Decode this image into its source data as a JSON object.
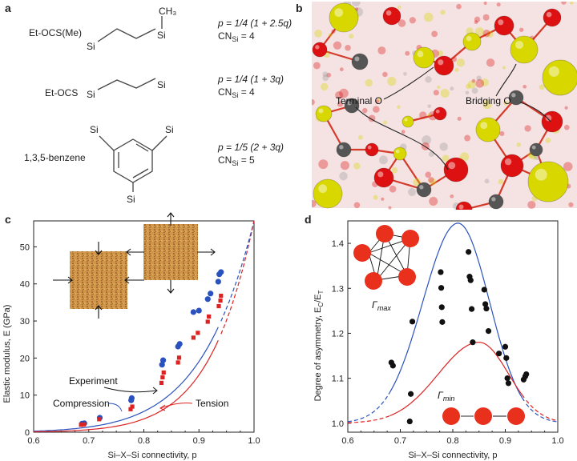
{
  "panel_a": {
    "label": "a",
    "molecules": [
      {
        "name": "Et-OCS(Me)",
        "formula": "p = 1/4 (1 + 2.5q)",
        "cn": "CN",
        "cn_sub": "Si",
        "cn_value": " = 4",
        "atoms": [
          "Si",
          "Si",
          "CH₃"
        ]
      },
      {
        "name": "Et-OCS",
        "formula": "p = 1/4 (1 + 3q)",
        "cn": "CN",
        "cn_sub": "Si",
        "cn_value": " = 4",
        "atoms": [
          "Si",
          "Si"
        ]
      },
      {
        "name": "1,3,5-benzene",
        "formula": "p = 1/5 (2 + 3q)",
        "cn": "CN",
        "cn_sub": "Si",
        "cn_value": " = 5",
        "atoms": [
          "Si",
          "Si",
          "Si"
        ]
      }
    ]
  },
  "panel_b": {
    "label": "b",
    "annotations": [
      "Terminal O",
      "Bridging O"
    ],
    "colors": {
      "si": "#d8d800",
      "o": "#dd1111",
      "c": "#555555",
      "bg": "#f4dcdc"
    }
  },
  "panel_c": {
    "label": "c",
    "annotations": [
      "Experiment",
      "Compression",
      "Tension"
    ],
    "chart_data": {
      "type": "scatter",
      "xlabel": "Si–X–Si connectivity, p",
      "ylabel": "Elastic modulus, E (GPa)",
      "xlim": [
        0.6,
        1.0
      ],
      "ylim": [
        0,
        57
      ],
      "xticks": [
        "0.6",
        "0.7",
        "0.8",
        "0.9",
        "1.0"
      ],
      "yticks": [
        "0",
        "10",
        "20",
        "30",
        "40",
        "50"
      ],
      "series": [
        {
          "name": "Compression",
          "color": "#2a52be",
          "marker": "circle",
          "points": [
            [
              0.688,
              2.3
            ],
            [
              0.692,
              2.4
            ],
            [
              0.72,
              3.9
            ],
            [
              0.777,
              8.6
            ],
            [
              0.778,
              9.2
            ],
            [
              0.833,
              18.2
            ],
            [
              0.835,
              19.4
            ],
            [
              0.862,
              23.1
            ],
            [
              0.865,
              23.8
            ],
            [
              0.89,
              32.4
            ],
            [
              0.9,
              32.8
            ],
            [
              0.916,
              35.9
            ],
            [
              0.921,
              37.4
            ],
            [
              0.935,
              40.6
            ],
            [
              0.937,
              42.6
            ],
            [
              0.94,
              43.2
            ]
          ]
        },
        {
          "name": "Tension",
          "color": "#dd2222",
          "marker": "square",
          "points": [
            [
              0.686,
              2.0
            ],
            [
              0.691,
              2.1
            ],
            [
              0.719,
              3.5
            ],
            [
              0.776,
              6.2
            ],
            [
              0.779,
              6.9
            ],
            [
              0.832,
              13.3
            ],
            [
              0.834,
              14.8
            ],
            [
              0.836,
              16.1
            ],
            [
              0.862,
              18.8
            ],
            [
              0.864,
              20.1
            ],
            [
              0.89,
              25.5
            ],
            [
              0.898,
              26.8
            ],
            [
              0.916,
              29.8
            ],
            [
              0.918,
              31.2
            ],
            [
              0.936,
              34.0
            ],
            [
              0.939,
              35.5
            ],
            [
              0.94,
              36.8
            ]
          ]
        }
      ],
      "curves": [
        {
          "name": "compression-fit",
          "color": "#2a52be",
          "dashed_after": 0.94
        },
        {
          "name": "tension-fit",
          "color": "#dd2222",
          "dashed_after": 0.94
        }
      ]
    }
  },
  "panel_d": {
    "label": "d",
    "annotations": [
      "Γ",
      "max",
      "Γ",
      "min"
    ],
    "chart_data": {
      "type": "scatter",
      "xlabel": "Si–X–Si connectivity, p",
      "ylabel": "Degree of asymmetry, E",
      "ylabel_sub1": "C",
      "ylabel_mid": "/E",
      "ylabel_sub2": "T",
      "xlim": [
        0.6,
        1.0
      ],
      "ylim": [
        0.98,
        1.45
      ],
      "xticks": [
        "0.6",
        "0.7",
        "0.8",
        "0.9",
        "1.0"
      ],
      "yticks": [
        "1.0",
        "1.1",
        "1.2",
        "1.3",
        "1.4"
      ],
      "series": [
        {
          "name": "data",
          "color": "#111111",
          "marker": "circle",
          "points": [
            [
              0.683,
              1.135
            ],
            [
              0.686,
              1.128
            ],
            [
              0.718,
              1.004
            ],
            [
              0.72,
              1.065
            ],
            [
              0.723,
              1.226
            ],
            [
              0.777,
              1.336
            ],
            [
              0.778,
              1.301
            ],
            [
              0.779,
              1.258
            ],
            [
              0.78,
              1.225
            ],
            [
              0.83,
              1.381
            ],
            [
              0.832,
              1.326
            ],
            [
              0.834,
              1.318
            ],
            [
              0.836,
              1.254
            ],
            [
              0.838,
              1.18
            ],
            [
              0.86,
              1.297
            ],
            [
              0.862,
              1.265
            ],
            [
              0.864,
              1.255
            ],
            [
              0.868,
              1.205
            ],
            [
              0.888,
              1.155
            ],
            [
              0.9,
              1.17
            ],
            [
              0.902,
              1.145
            ],
            [
              0.904,
              1.1
            ],
            [
              0.906,
              1.089
            ],
            [
              0.935,
              1.097
            ],
            [
              0.938,
              1.104
            ],
            [
              0.94,
              1.109
            ]
          ]
        }
      ],
      "curves": [
        {
          "name": "gamma-max-curve",
          "color": "#2a52be",
          "peak": [
            0.81,
            1.445
          ]
        },
        {
          "name": "gamma-min-curve",
          "color": "#dd2222",
          "peak": [
            0.85,
            1.18
          ]
        }
      ]
    }
  }
}
